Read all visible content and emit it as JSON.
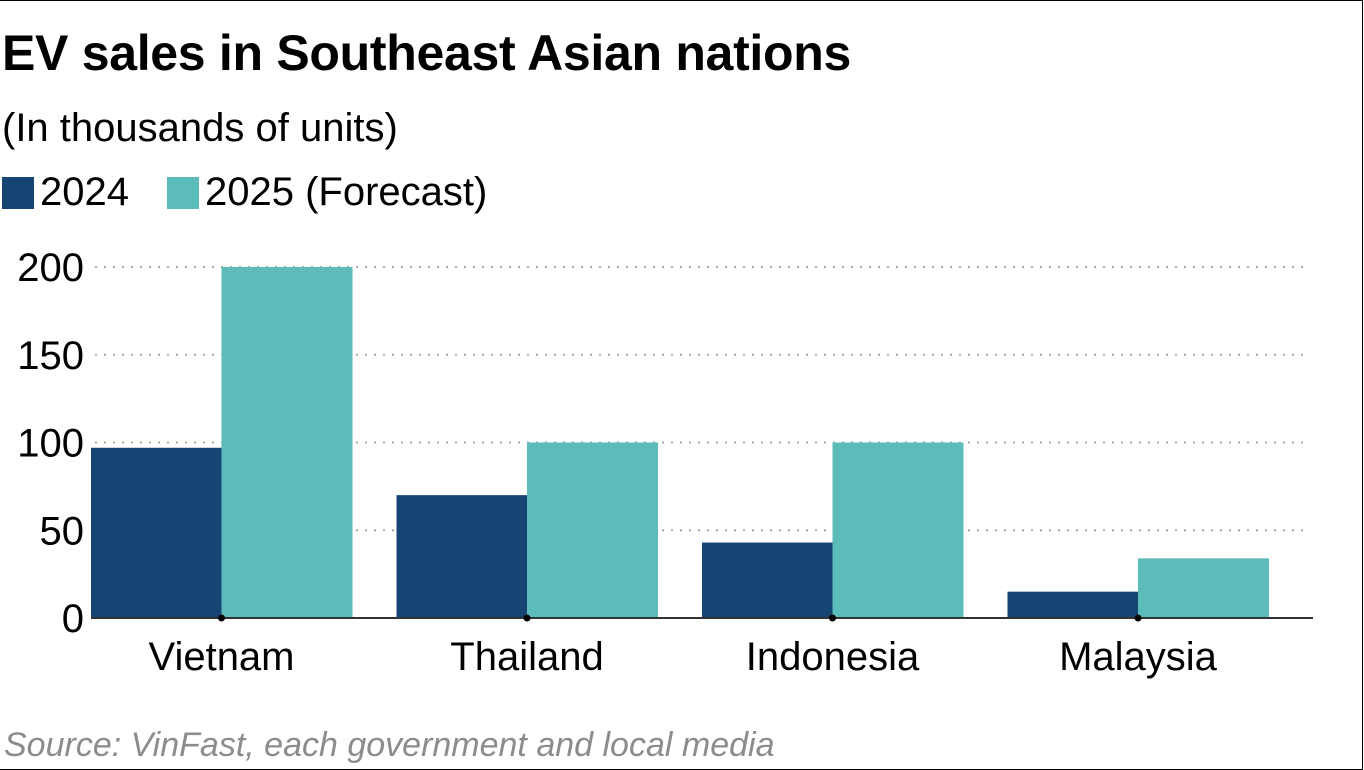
{
  "chart_data": {
    "type": "bar",
    "title": "EV sales in Southeast Asian nations",
    "subtitle": "(In thousands of units)",
    "xlabel": "",
    "ylabel": "",
    "categories": [
      "Vietnam",
      "Thailand",
      "Indonesia",
      "Malaysia"
    ],
    "series": [
      {
        "name": "2024",
        "color": "#164574",
        "values": [
          97,
          70,
          43,
          15
        ]
      },
      {
        "name": "2025 (Forecast)",
        "color": "#5bbcba",
        "values": [
          200,
          100,
          100,
          34
        ]
      }
    ],
    "ylim": [
      0,
      200
    ],
    "yticks": [
      "0",
      "50",
      "100",
      "150",
      "200"
    ],
    "grid": true,
    "legend_position": "top-left",
    "source": "Source: VinFast, each government and local media"
  }
}
